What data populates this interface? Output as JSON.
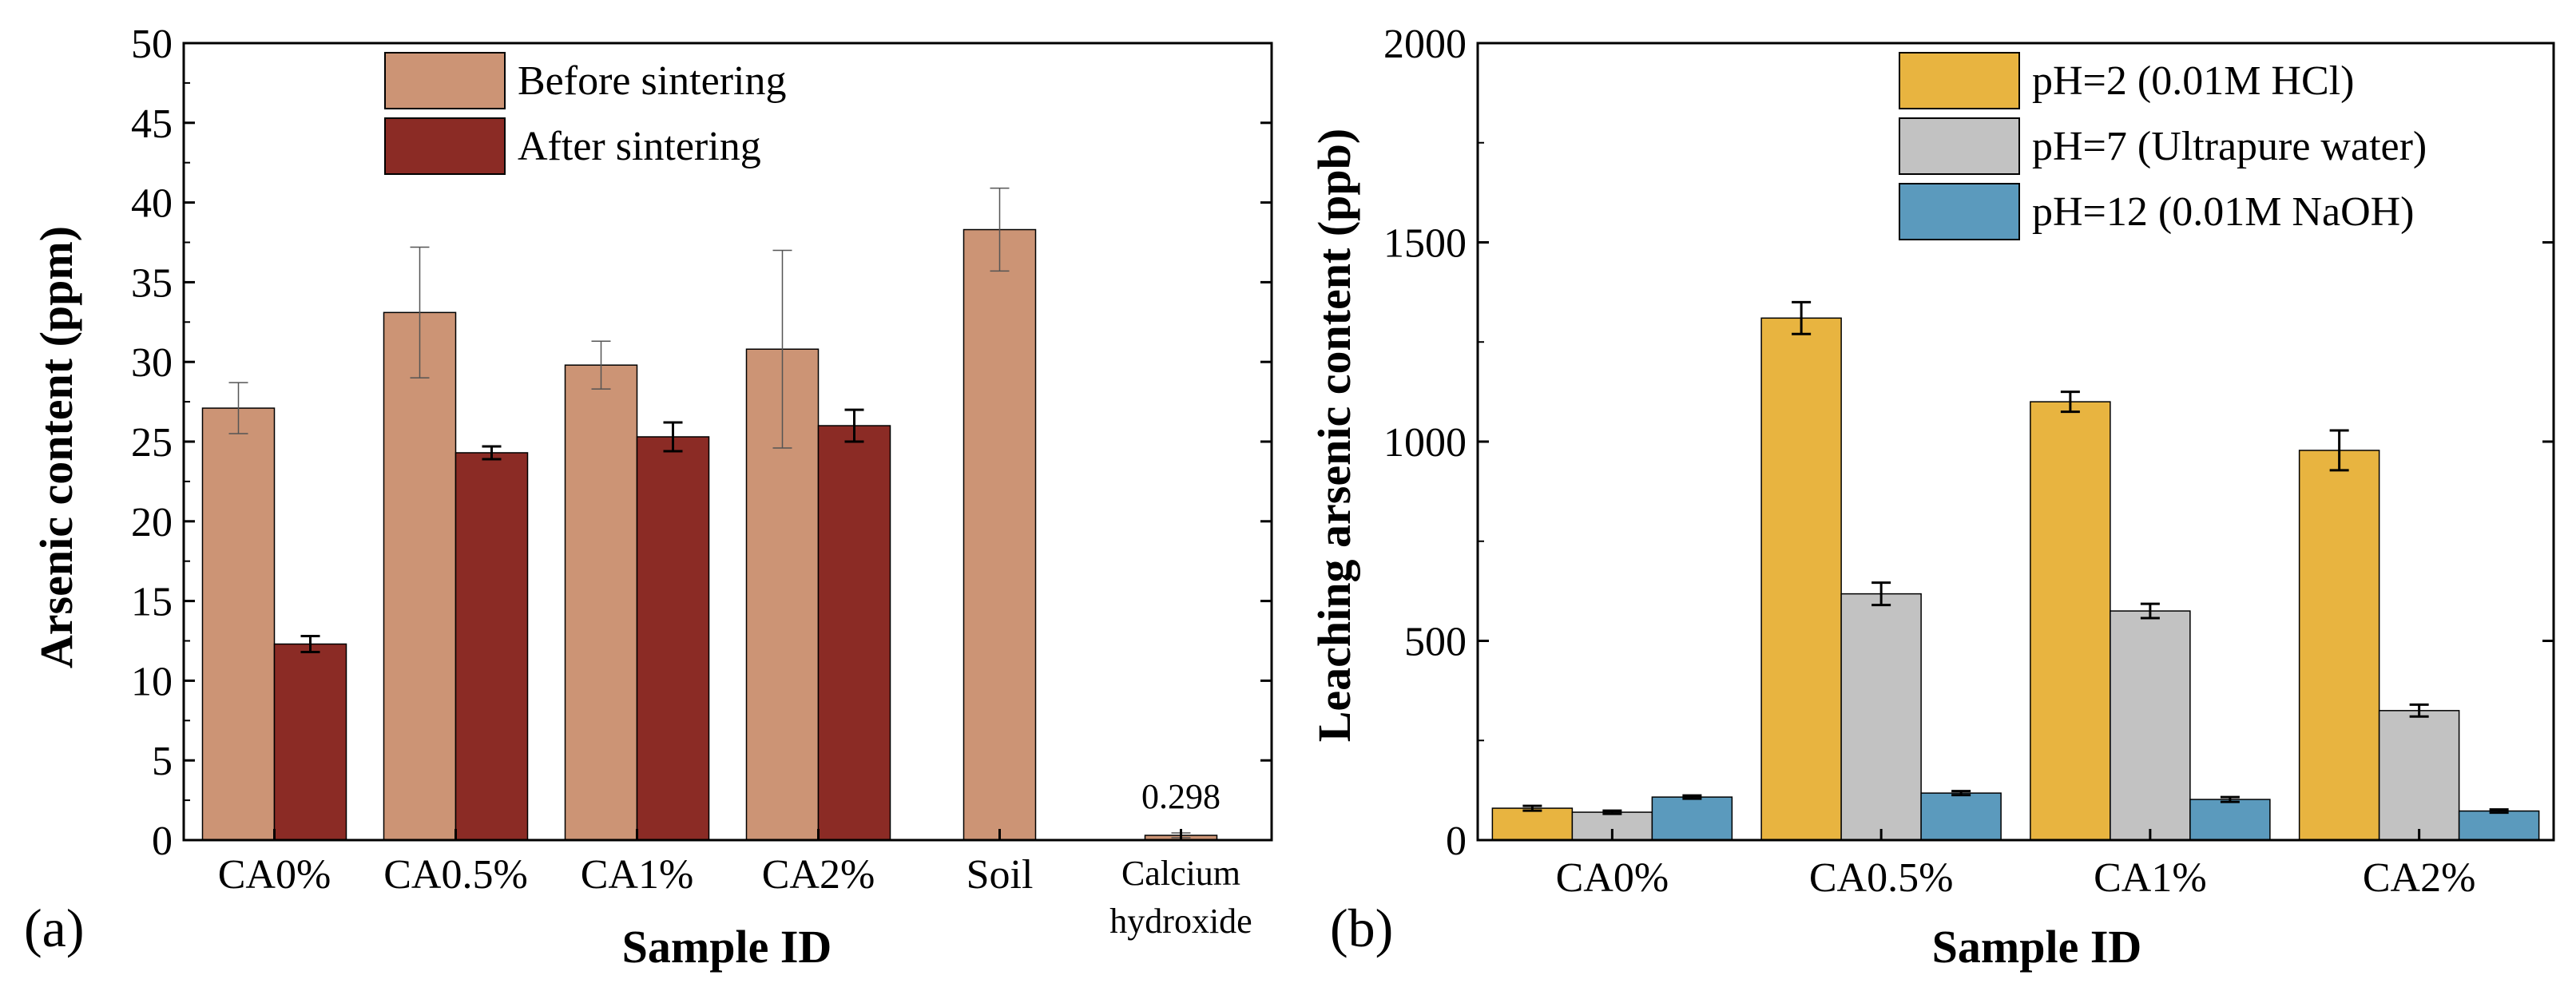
{
  "chart_data": [
    {
      "type": "bar",
      "panel_label": "(a)",
      "xlabel": "Sample ID",
      "ylabel": "Arsenic content (ppm)",
      "ylim": [
        0,
        50
      ],
      "yticks": [
        "0",
        "5",
        "10",
        "15",
        "20",
        "25",
        "30",
        "35",
        "40",
        "45",
        "50"
      ],
      "categories": [
        "CA0%",
        "CA0.5%",
        "CA1%",
        "CA2%",
        "Soil",
        "Calcium hydroxide"
      ],
      "series": [
        {
          "name": "Before sintering",
          "color": "#cc9475",
          "values": [
            27.1,
            33.1,
            29.8,
            30.8,
            38.3,
            0.298
          ],
          "errors": [
            1.6,
            4.1,
            1.5,
            6.2,
            2.6,
            0.15
          ]
        },
        {
          "name": "After sintering",
          "color": "#8b2b25",
          "values": [
            12.3,
            24.3,
            25.3,
            26.0,
            null,
            null
          ],
          "errors": [
            0.5,
            0.4,
            0.9,
            1.0,
            null,
            null
          ]
        }
      ],
      "annotations": [
        {
          "text": "0.298",
          "category": "Calcium hydroxide"
        }
      ],
      "legend_position": "top-center"
    },
    {
      "type": "bar",
      "panel_label": "(b)",
      "xlabel": "Sample ID",
      "ylabel": "Leaching arsenic content (ppb)",
      "ylim": [
        0,
        2000
      ],
      "yticks": [
        "0",
        "500",
        "1000",
        "1500",
        "2000"
      ],
      "categories": [
        "CA0%",
        "CA0.5%",
        "CA1%",
        "CA2%"
      ],
      "series": [
        {
          "name": "pH=2 (0.01M HCl)",
          "color": "#e8b440",
          "values": [
            80,
            1310,
            1100,
            978
          ],
          "errors": [
            6,
            40,
            25,
            50
          ]
        },
        {
          "name": "pH=7 (Ultrapure water)",
          "color": "#c2c2c2",
          "values": [
            70,
            618,
            575,
            325
          ],
          "errors": [
            4,
            28,
            18,
            15
          ]
        },
        {
          "name": "pH=12 (0.01M NaOH)",
          "color": "#5b9abd",
          "values": [
            108,
            118,
            102,
            73
          ],
          "errors": [
            4,
            5,
            6,
            4
          ]
        }
      ],
      "legend_position": "top-right"
    }
  ]
}
